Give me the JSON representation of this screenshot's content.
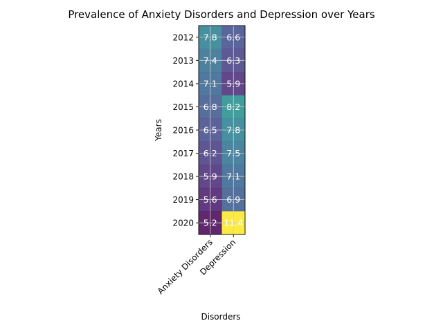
{
  "chart_data": {
    "type": "heatmap",
    "title": "Prevalence of Anxiety Disorders and Depression over Years",
    "xlabel": "Disorders",
    "ylabel": "Years",
    "columns": [
      "Anxiety Disorders",
      "Depression"
    ],
    "rows": [
      "2012",
      "2013",
      "2014",
      "2015",
      "2016",
      "2017",
      "2018",
      "2019",
      "2020"
    ],
    "values": [
      [
        7.8,
        6.6
      ],
      [
        7.4,
        6.3
      ],
      [
        7.1,
        5.9
      ],
      [
        6.8,
        8.2
      ],
      [
        6.5,
        7.8
      ],
      [
        6.2,
        7.5
      ],
      [
        5.9,
        7.1
      ],
      [
        5.6,
        6.9
      ],
      [
        5.2,
        11.4
      ]
    ],
    "colormap": "viridis",
    "color_range": [
      5.2,
      11.4
    ],
    "grid": true,
    "annotations": true
  }
}
